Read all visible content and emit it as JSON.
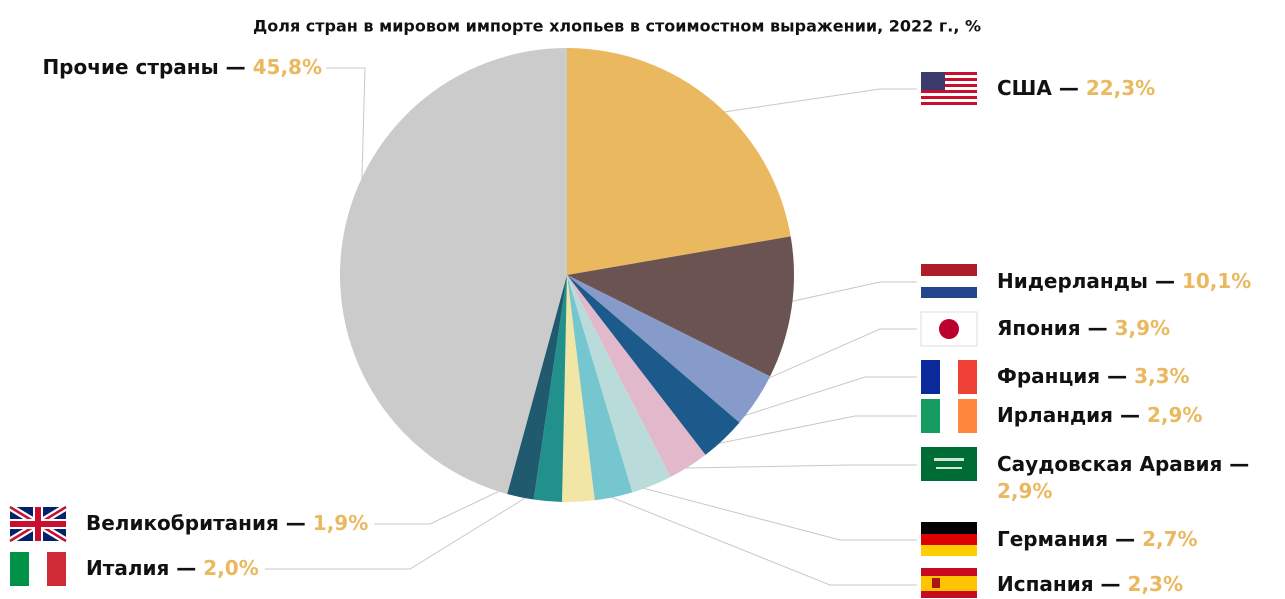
{
  "chart_data": {
    "type": "pie",
    "title": "Доля стран в мировом импорте хлопьев в стоимостном выражении, 2022 г., %",
    "categories": [
      "США",
      "Нидерланды",
      "Япония",
      "Франция",
      "Ирландия",
      "Саудовская Аравия",
      "Германия",
      "Испания",
      "Италия",
      "Великобритания",
      "Прочие страны"
    ],
    "values": [
      22.3,
      10.1,
      3.9,
      3.3,
      2.9,
      2.9,
      2.7,
      2.3,
      2.0,
      1.9,
      45.8
    ],
    "value_labels": [
      "22,3%",
      "10,1%",
      "3,9%",
      "3,3%",
      "2,9%",
      "2,9%",
      "2,7%",
      "2,3%",
      "2,0%",
      "1,9%",
      "45,8%"
    ],
    "label_separator": " — ",
    "colors": [
      "#eab85f",
      "#6b5352",
      "#869bc9",
      "#1b5a8a",
      "#e2b9cb",
      "#b9dcdb",
      "#76c6cf",
      "#f1e6a6",
      "#22918b",
      "#205a6e",
      "#cbcbcb"
    ],
    "value_label_color": "#eab85f"
  }
}
